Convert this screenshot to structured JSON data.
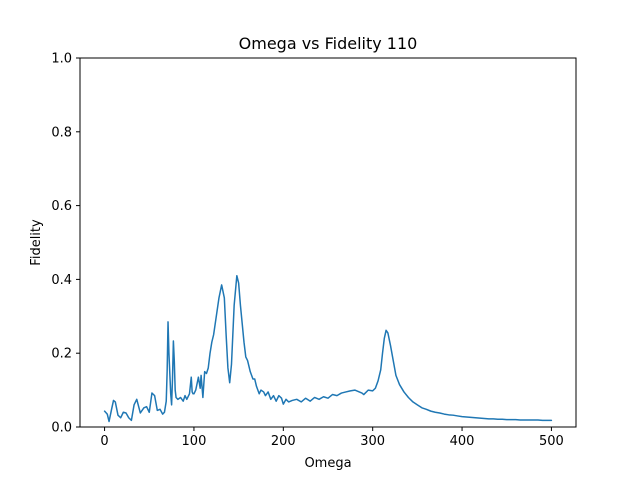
{
  "chart_data": {
    "type": "line",
    "title": "Omega vs Fidelity 110",
    "xlabel": "Omega",
    "ylabel": "Fidelity",
    "xlim": [
      -27.5,
      527.5
    ],
    "ylim": [
      0.0,
      1.0
    ],
    "xticks": [
      0,
      100,
      200,
      300,
      400,
      500
    ],
    "yticks": [
      0.0,
      0.2,
      0.4,
      0.6,
      0.8,
      1.0
    ],
    "xtick_labels": [
      "0",
      "100",
      "200",
      "300",
      "400",
      "500"
    ],
    "ytick_labels": [
      "0.0",
      "0.2",
      "0.4",
      "0.6",
      "0.8",
      "1.0"
    ],
    "grid": false,
    "series": [
      {
        "color": "#1f77b4",
        "x": [
          0,
          3,
          5,
          8,
          10,
          12,
          15,
          18,
          21,
          24,
          27,
          30,
          33,
          36,
          40,
          44,
          47,
          50,
          53,
          56,
          59,
          62,
          65,
          67,
          69,
          70,
          71,
          72,
          74,
          75,
          76,
          77,
          78,
          79,
          80,
          82,
          85,
          88,
          90,
          92,
          95,
          97,
          98,
          99,
          100,
          102,
          105,
          107,
          108,
          110,
          112,
          114,
          116,
          118,
          120,
          122,
          125,
          128,
          131,
          134,
          136,
          138,
          140,
          142,
          145,
          148,
          150,
          152,
          154,
          156,
          158,
          160,
          163,
          166,
          168,
          170,
          173,
          175,
          178,
          180,
          183,
          186,
          189,
          192,
          195,
          198,
          200,
          203,
          206,
          210,
          215,
          220,
          225,
          230,
          235,
          240,
          245,
          250,
          255,
          260,
          265,
          270,
          275,
          280,
          285,
          288,
          290,
          295,
          300,
          303,
          306,
          309,
          311,
          313,
          315,
          317,
          320,
          323,
          326,
          330,
          335,
          340,
          345,
          350,
          355,
          360,
          365,
          370,
          375,
          380,
          385,
          390,
          395,
          400,
          405,
          410,
          415,
          420,
          425,
          430,
          435,
          440,
          445,
          450,
          455,
          460,
          465,
          470,
          475,
          480,
          485,
          490,
          495,
          500
        ],
        "y": [
          0.043,
          0.035,
          0.015,
          0.05,
          0.072,
          0.068,
          0.032,
          0.025,
          0.04,
          0.038,
          0.025,
          0.018,
          0.06,
          0.075,
          0.038,
          0.052,
          0.055,
          0.04,
          0.092,
          0.085,
          0.045,
          0.048,
          0.035,
          0.04,
          0.07,
          0.15,
          0.285,
          0.2,
          0.09,
          0.06,
          0.13,
          0.233,
          0.18,
          0.1,
          0.08,
          0.075,
          0.08,
          0.07,
          0.085,
          0.075,
          0.09,
          0.135,
          0.095,
          0.09,
          0.09,
          0.1,
          0.135,
          0.105,
          0.14,
          0.08,
          0.15,
          0.145,
          0.16,
          0.2,
          0.23,
          0.25,
          0.3,
          0.35,
          0.385,
          0.35,
          0.25,
          0.16,
          0.12,
          0.17,
          0.33,
          0.41,
          0.39,
          0.33,
          0.28,
          0.23,
          0.19,
          0.18,
          0.15,
          0.13,
          0.13,
          0.11,
          0.09,
          0.1,
          0.095,
          0.085,
          0.095,
          0.075,
          0.085,
          0.07,
          0.085,
          0.078,
          0.062,
          0.075,
          0.068,
          0.072,
          0.075,
          0.068,
          0.078,
          0.07,
          0.08,
          0.075,
          0.082,
          0.078,
          0.088,
          0.085,
          0.092,
          0.095,
          0.098,
          0.1,
          0.095,
          0.092,
          0.088,
          0.1,
          0.098,
          0.105,
          0.125,
          0.155,
          0.2,
          0.24,
          0.262,
          0.255,
          0.22,
          0.18,
          0.14,
          0.115,
          0.095,
          0.08,
          0.068,
          0.06,
          0.052,
          0.048,
          0.043,
          0.04,
          0.038,
          0.035,
          0.033,
          0.032,
          0.03,
          0.028,
          0.027,
          0.026,
          0.025,
          0.024,
          0.023,
          0.022,
          0.022,
          0.021,
          0.021,
          0.02,
          0.02,
          0.02,
          0.019,
          0.019,
          0.019,
          0.019,
          0.019,
          0.018,
          0.018,
          0.018
        ]
      }
    ]
  }
}
